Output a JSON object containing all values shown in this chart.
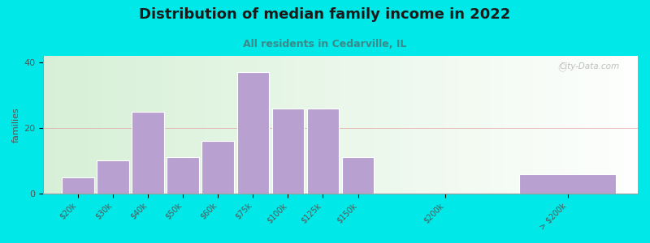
{
  "title": "Distribution of median family income in 2022",
  "subtitle": "All residents in Cedarville, IL",
  "ylabel": "families",
  "bar_labels": [
    "$20k",
    "$30k",
    "$40k",
    "$50k",
    "$60k",
    "$75k",
    "$100k",
    "$125k",
    "$150k",
    "$200k",
    "> $200k"
  ],
  "bar_values": [
    5,
    10,
    25,
    11,
    16,
    37,
    26,
    26,
    11,
    0,
    6
  ],
  "bar_positions": [
    0,
    1,
    2,
    3,
    4,
    5,
    6,
    7,
    8,
    10,
    13
  ],
  "bar_widths": [
    1,
    1,
    1,
    1,
    1,
    1,
    1,
    1,
    1,
    2,
    3
  ],
  "bar_color": "#b8a0d0",
  "bg_outer": "#00e8e8",
  "ylim": [
    0,
    42
  ],
  "yticks": [
    0,
    20,
    40
  ],
  "title_fontsize": 13,
  "subtitle_fontsize": 9,
  "watermark": "City-Data.com"
}
